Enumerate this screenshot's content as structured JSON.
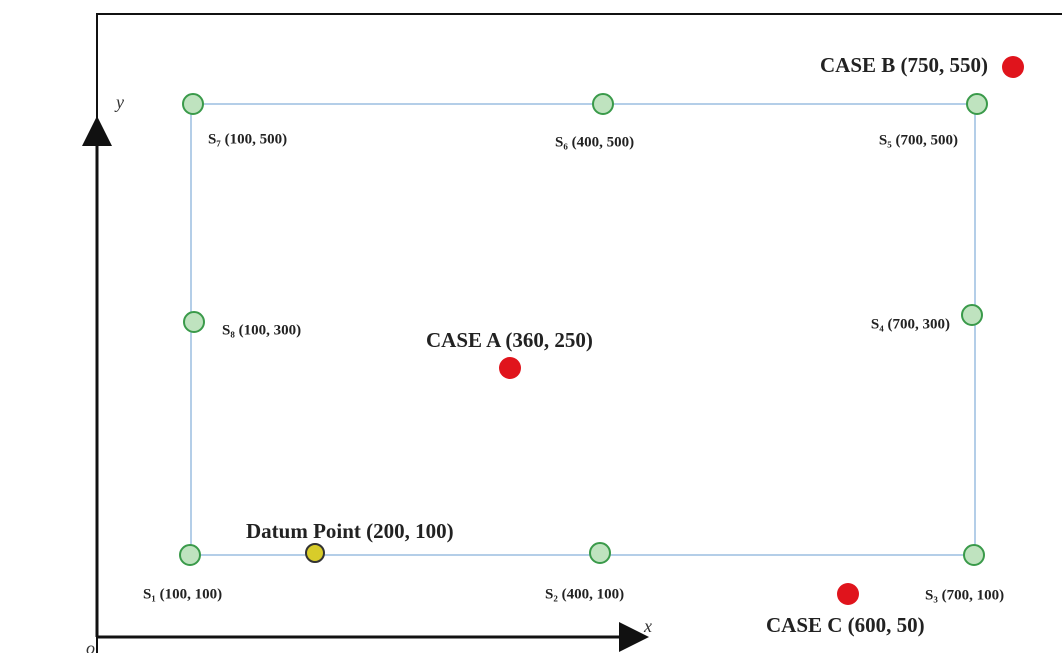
{
  "axes": {
    "x": "x",
    "y": "y",
    "origin": "o"
  },
  "sensors": [
    {
      "label": "S₇ (100, 500)"
    },
    {
      "label": "S₆ (400, 500)"
    },
    {
      "label": "S₅ (700, 500)"
    },
    {
      "label": "S₈ (100, 300)"
    },
    {
      "label": "S₄ (700, 300)"
    },
    {
      "label": "S₁ (100, 100)"
    },
    {
      "label": "S₂ (400, 100)"
    },
    {
      "label": "S₃ (700, 100)"
    }
  ],
  "datum": {
    "label": "Datum Point (200, 100)"
  },
  "cases": [
    {
      "label": "CASE A (360, 250)"
    },
    {
      "label": "CASE B (750, 550)"
    },
    {
      "label": "CASE C (600, 50)"
    }
  ]
}
